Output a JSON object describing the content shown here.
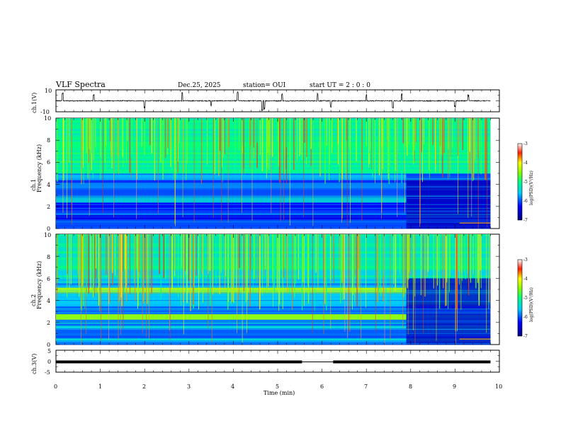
{
  "header": {
    "title": "VLF Spectra",
    "date": "Dec.25, 2025",
    "station": "station= OUI",
    "start_ut": "start  UT =   2  : 0  : 0"
  },
  "colors": {
    "spectro_low": "#00008c",
    "spectro_mid": "#00c8ff",
    "spectro_high": "#8cff00",
    "spectro_peak": "#ff0000",
    "waveform": "#000000"
  },
  "chart_data": [
    {
      "id": "ch1-waveform",
      "type": "line",
      "ylabel": "ch.1(V)",
      "ylim": [
        -10,
        10
      ],
      "yticks": [
        "10",
        "-10"
      ],
      "xlim": [
        0,
        10
      ],
      "baseline": 0,
      "noise_amplitude": 1.2,
      "spikes": [
        {
          "t": 0.15,
          "v": 8
        },
        {
          "t": 0.85,
          "v": 6
        },
        {
          "t": 2.0,
          "v": -7
        },
        {
          "t": 2.85,
          "v": 8
        },
        {
          "t": 3.5,
          "v": -5
        },
        {
          "t": 4.1,
          "v": 9
        },
        {
          "t": 4.65,
          "v": -9
        },
        {
          "t": 4.7,
          "v": -9
        },
        {
          "t": 5.1,
          "v": 7
        },
        {
          "t": 5.9,
          "v": 8
        },
        {
          "t": 6.2,
          "v": -6
        },
        {
          "t": 7.0,
          "v": 6
        },
        {
          "t": 7.6,
          "v": -8
        },
        {
          "t": 7.8,
          "v": 7
        },
        {
          "t": 9.0,
          "v": -6
        },
        {
          "t": 9.3,
          "v": 6
        }
      ]
    },
    {
      "id": "ch1-spectrogram",
      "type": "heatmap",
      "ylabel_top": "ch.1",
      "ylabel": "Frequency (kHz)",
      "ylim": [
        0,
        10
      ],
      "yticks": [
        "0",
        "2",
        "4",
        "6",
        "8",
        "10"
      ],
      "xlim": [
        0,
        9.8
      ],
      "colorbar": {
        "range": [
          -7,
          -3
        ],
        "ticks": [
          "-3",
          "-4",
          "-5",
          "-6",
          "-7"
        ],
        "label": "log(PSD)(V²/Hz)"
      },
      "bands_khz": [
        {
          "f": 0.3,
          "level": -6.0
        },
        {
          "f": 1.0,
          "level": -6.4
        },
        {
          "f": 1.7,
          "level": -6.2
        },
        {
          "f": 2.6,
          "level": -5.4
        },
        {
          "f": 3.3,
          "level": -6.0
        },
        {
          "f": 3.9,
          "level": -5.8
        },
        {
          "f": 4.7,
          "level": -5.6
        }
      ],
      "change_time_min": 7.9
    },
    {
      "id": "ch2-spectrogram",
      "type": "heatmap",
      "ylabel_top": "ch.2",
      "ylabel": "Frequency (kHz)",
      "ylim": [
        0,
        10
      ],
      "yticks": [
        "0",
        "2",
        "4",
        "6",
        "8",
        "10"
      ],
      "xlim": [
        0,
        9.8
      ],
      "colorbar": {
        "range": [
          -7,
          -3
        ],
        "ticks": [
          "-3",
          "-4",
          "-5",
          "-6",
          "-7"
        ],
        "label": "log(PSD)(V²/Hz)"
      },
      "bands_khz": [
        {
          "f": 2.5,
          "level": -4.4
        },
        {
          "f": 4.9,
          "level": -4.3
        },
        {
          "f": 3.6,
          "level": -5.6
        },
        {
          "f": 1.2,
          "level": -6.0
        },
        {
          "f": 6.5,
          "level": -5.5
        }
      ],
      "change_time_min": 7.9
    },
    {
      "id": "ch3-trace",
      "type": "line",
      "ylabel": "ch.3(V)",
      "ylim": [
        -5,
        5
      ],
      "yticks": [
        "5",
        "0",
        "-5"
      ],
      "xlim": [
        0,
        9.8
      ],
      "level": 0,
      "thin_segment": [
        5.55,
        6.25
      ]
    }
  ],
  "xaxis": {
    "label": "Time  (min)",
    "ticks": [
      "0",
      "1",
      "2",
      "3",
      "4",
      "5",
      "6",
      "7",
      "8",
      "9",
      "10"
    ],
    "range": [
      0,
      10
    ]
  }
}
